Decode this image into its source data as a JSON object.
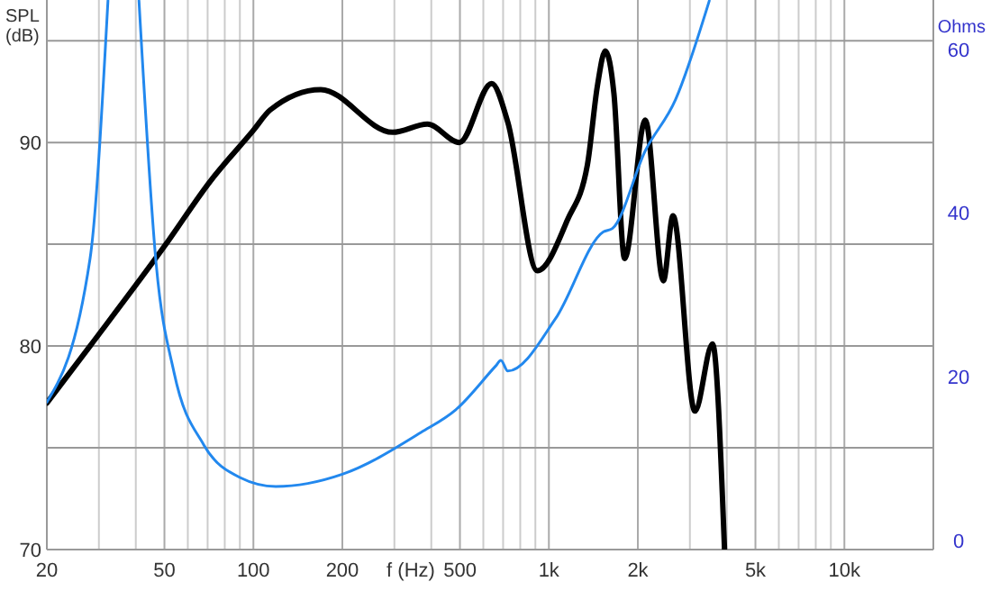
{
  "chart_data": {
    "type": "line",
    "xlabel": "f (Hz)",
    "ylabel": "SPL\n(dB)",
    "y2label": "Ohms",
    "log": "x",
    "grid": true,
    "line_style": "solid",
    "xlim": [
      20,
      20000
    ],
    "ylim": [
      70,
      97
    ],
    "y2lim": [
      -1.1,
      66
    ],
    "xticks": [
      20,
      {
        "value": 30,
        "label": null
      },
      {
        "value": 40,
        "label": null
      },
      50,
      {
        "value": 60,
        "label": null
      },
      {
        "value": 70,
        "label": null
      },
      {
        "value": 80,
        "label": null
      },
      {
        "value": 90,
        "label": null
      },
      100,
      200,
      {
        "value": 300,
        "label": null
      },
      {
        "value": 400,
        "label": null
      },
      500,
      {
        "value": 600,
        "label": null
      },
      {
        "value": 700,
        "label": null
      },
      {
        "value": 800,
        "label": null
      },
      {
        "value": 900,
        "label": null
      },
      {
        "value": 1000,
        "label": "1k"
      },
      {
        "value": 2000,
        "label": "2k"
      },
      {
        "value": 3000,
        "label": null
      },
      {
        "value": 4000,
        "label": null
      },
      {
        "value": 5000,
        "label": "5k"
      },
      {
        "value": 6000,
        "label": null
      },
      {
        "value": 7000,
        "label": null
      },
      {
        "value": 8000,
        "label": null
      },
      {
        "value": 9000,
        "label": null
      },
      {
        "value": 10000,
        "label": "10k"
      },
      {
        "value": 20000,
        "label": null
      }
    ],
    "yticks": [
      70,
      {
        "value": 75,
        "label": null
      },
      80,
      {
        "value": 85,
        "label": null
      },
      90,
      {
        "value": 95,
        "label": null
      }
    ],
    "y2ticks": [
      0,
      20,
      40,
      60
    ],
    "series": [
      {
        "color": "#000000",
        "x": [
          20,
          28,
          50,
          71.5,
          100,
          114,
          169,
          296,
          388,
          498,
          640,
          726,
          914,
          1156,
          1350,
          1460,
          1552,
          1660,
          1804,
          2120,
          2440,
          2630,
          3120,
          3580,
          3930
        ],
        "values": [
          77.2,
          80.0,
          84.9,
          88.1,
          90.6,
          91.6,
          92.6,
          90.5,
          90.9,
          90.0,
          92.9,
          91.0,
          83.7,
          86.2,
          88.9,
          92.8,
          94.5,
          92.4,
          84.3,
          91.1,
          83.2,
          86.4,
          76.8,
          80.1,
          70
        ]
      },
      {
        "color": "#2288ee",
        "axis": "y2",
        "x": [
          20,
          28,
          32.2,
          36,
          41,
          46.9,
          53.9,
          67.9,
          90,
          119,
          200,
          369,
          485,
          660,
          688,
          726,
          1053,
          1530,
          1640,
          2120,
          2680,
          3490
        ],
        "values": [
          16.9,
          34.4,
          65.9,
          null,
          65.9,
          33.7,
          20.5,
          11.7,
          7.7,
          6.6,
          8.1,
          13.2,
          16.0,
          21.3,
          22.0,
          20.7,
          27.1,
          37.7,
          38.1,
          47.6,
          53.8,
          65.9
        ]
      }
    ]
  }
}
